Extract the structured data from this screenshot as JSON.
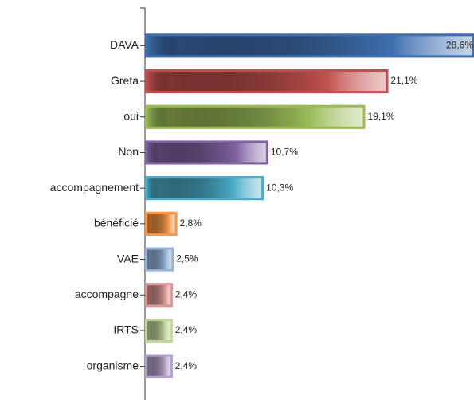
{
  "chart_data": {
    "type": "bar",
    "orientation": "horizontal",
    "categories": [
      "DAVA",
      "Greta",
      "oui",
      "Non",
      "accompagnement",
      "bénéficié",
      "VAE",
      "accompagne",
      "IRTS",
      "organisme"
    ],
    "values": [
      28.6,
      21.1,
      19.1,
      10.7,
      10.3,
      2.8,
      2.5,
      2.4,
      2.4,
      2.4
    ],
    "value_labels": [
      "28,6%",
      "21,1%",
      "19,1%",
      "10,7%",
      "10,3%",
      "2,8%",
      "2,5%",
      "2,4%",
      "2,4%",
      "2,4%"
    ],
    "colors": [
      "#3f6fb0",
      "#c0504d",
      "#9bbb59",
      "#8064a2",
      "#4bacc6",
      "#f79646",
      "#95b3d7",
      "#d99694",
      "#c3d69b",
      "#b3a2c7"
    ]
  }
}
